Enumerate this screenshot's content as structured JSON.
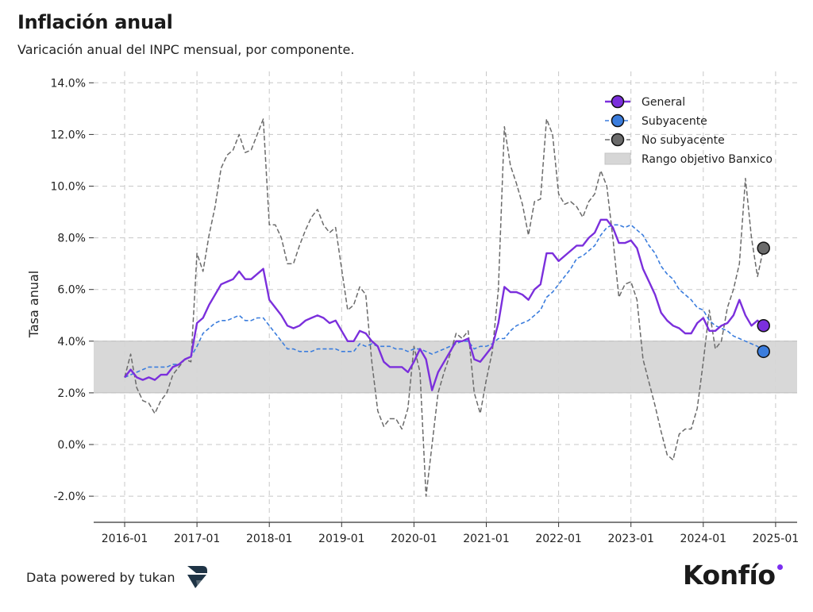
{
  "header": {
    "title": "Inflación anual",
    "subtitle": "Varicación anual del INPC mensual, por componente."
  },
  "footer": {
    "powered_by": "Data powered by tukan",
    "brand": "Konfío"
  },
  "colors": {
    "general": "#7b2fdc",
    "subyacente": "#3b7ddd",
    "no_subyacente": "#6b6b6b",
    "band": "#d6d6d6",
    "brand_dot": "#7b2ff0",
    "tukan_logo": "#1f3446"
  },
  "icons": {
    "tukan_logo": "tukan-logo-icon"
  },
  "chart_data": {
    "type": "line",
    "title": "Inflación anual",
    "subtitle": "Varicación anual del INPC mensual, por componente.",
    "xlabel": "",
    "ylabel": "Tasa anual",
    "x_ticks": [
      "2016-01",
      "2017-01",
      "2018-01",
      "2019-01",
      "2020-01",
      "2021-01",
      "2022-01",
      "2023-01",
      "2024-01",
      "2025-01"
    ],
    "y_ticks": [
      "-2.0%",
      "0.0%",
      "2.0%",
      "4.0%",
      "6.0%",
      "8.0%",
      "10.0%",
      "12.0%",
      "14.0%"
    ],
    "ylim": [
      -3,
      14
    ],
    "xlim": [
      "2015-11",
      "2025-03"
    ],
    "grid": true,
    "legend_position": "top-right",
    "band": {
      "name": "Rango objetivo Banxico",
      "from": 2,
      "to": 4
    },
    "start": "2016-01",
    "series": [
      {
        "name": "General",
        "style": "solid",
        "values": [
          2.6,
          2.9,
          2.6,
          2.5,
          2.6,
          2.5,
          2.7,
          2.7,
          3.0,
          3.1,
          3.3,
          3.4,
          4.7,
          4.9,
          5.4,
          5.8,
          6.2,
          6.3,
          6.4,
          6.7,
          6.4,
          6.4,
          6.6,
          6.8,
          5.6,
          5.3,
          5.0,
          4.6,
          4.5,
          4.6,
          4.8,
          4.9,
          5.0,
          4.9,
          4.7,
          4.8,
          4.4,
          4.0,
          4.0,
          4.4,
          4.3,
          4.0,
          3.8,
          3.2,
          3.0,
          3.0,
          3.0,
          2.8,
          3.2,
          3.7,
          3.3,
          2.1,
          2.8,
          3.2,
          3.6,
          4.0,
          4.0,
          4.1,
          3.3,
          3.2,
          3.5,
          3.8,
          4.7,
          6.1,
          5.9,
          5.9,
          5.8,
          5.6,
          6.0,
          6.2,
          7.4,
          7.4,
          7.1,
          7.3,
          7.5,
          7.7,
          7.7,
          8.0,
          8.2,
          8.7,
          8.7,
          8.4,
          7.8,
          7.8,
          7.9,
          7.6,
          6.8,
          6.3,
          5.8,
          5.1,
          4.8,
          4.6,
          4.5,
          4.3,
          4.3,
          4.7,
          4.9,
          4.4,
          4.4,
          4.6,
          4.7,
          5.0,
          5.6,
          5.0,
          4.6,
          4.8,
          4.6
        ]
      },
      {
        "name": "Subyacente",
        "style": "dashed",
        "values": [
          2.6,
          2.7,
          2.8,
          2.9,
          3.0,
          3.0,
          3.0,
          3.0,
          3.1,
          3.1,
          3.3,
          3.4,
          3.8,
          4.3,
          4.5,
          4.7,
          4.8,
          4.8,
          4.9,
          5.0,
          4.8,
          4.8,
          4.9,
          4.9,
          4.6,
          4.3,
          4.0,
          3.7,
          3.7,
          3.6,
          3.6,
          3.6,
          3.7,
          3.7,
          3.7,
          3.7,
          3.6,
          3.6,
          3.6,
          3.9,
          3.8,
          3.9,
          3.8,
          3.8,
          3.8,
          3.7,
          3.7,
          3.6,
          3.7,
          3.7,
          3.6,
          3.5,
          3.6,
          3.7,
          3.8,
          3.9,
          4.0,
          4.0,
          3.7,
          3.8,
          3.8,
          3.9,
          4.1,
          4.1,
          4.4,
          4.6,
          4.7,
          4.8,
          5.0,
          5.2,
          5.7,
          5.9,
          6.2,
          6.5,
          6.8,
          7.2,
          7.3,
          7.5,
          7.7,
          8.1,
          8.4,
          8.5,
          8.5,
          8.4,
          8.5,
          8.3,
          8.1,
          7.7,
          7.4,
          6.9,
          6.6,
          6.4,
          6.0,
          5.8,
          5.6,
          5.3,
          5.2,
          4.8,
          4.6,
          4.5,
          4.4,
          4.2,
          4.1,
          4.0,
          3.9,
          3.8,
          3.6
        ]
      },
      {
        "name": "No subyacente",
        "style": "dashed",
        "values": [
          2.6,
          3.5,
          2.2,
          1.7,
          1.6,
          1.2,
          1.7,
          2.0,
          2.7,
          3.0,
          3.3,
          3.2,
          7.4,
          6.7,
          8.1,
          9.2,
          10.7,
          11.2,
          11.4,
          12.0,
          11.3,
          11.4,
          12.0,
          12.6,
          8.5,
          8.5,
          8.0,
          7.0,
          7.0,
          7.7,
          8.3,
          8.8,
          9.1,
          8.5,
          8.2,
          8.4,
          6.8,
          5.2,
          5.4,
          6.1,
          5.8,
          3.2,
          1.3,
          0.7,
          1.0,
          1.0,
          0.6,
          1.4,
          3.8,
          2.8,
          -2.0,
          0.0,
          2.0,
          2.8,
          3.5,
          4.3,
          4.1,
          4.4,
          2.0,
          1.2,
          2.5,
          3.6,
          6.0,
          12.3,
          10.8,
          10.1,
          9.3,
          8.1,
          9.4,
          9.5,
          12.6,
          12.0,
          9.7,
          9.3,
          9.4,
          9.2,
          8.8,
          9.4,
          9.7,
          10.6,
          10.0,
          8.0,
          5.7,
          6.2,
          6.3,
          5.6,
          3.3,
          2.4,
          1.5,
          0.5,
          -0.4,
          -0.6,
          0.4,
          0.6,
          0.6,
          1.4,
          3.2,
          5.2,
          3.7,
          4.0,
          5.3,
          6.0,
          7.0,
          10.3,
          8.0,
          6.5,
          7.6
        ]
      }
    ]
  }
}
